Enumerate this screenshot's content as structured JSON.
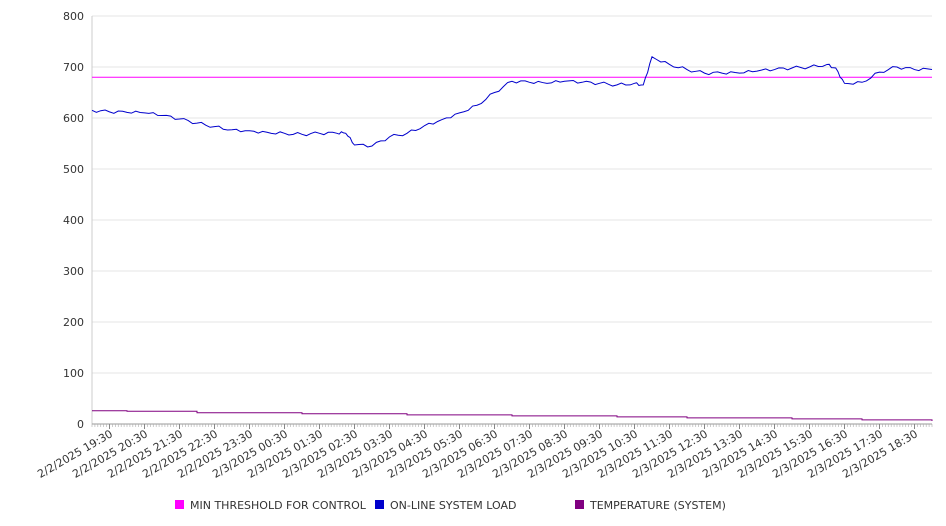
{
  "chart_data": {
    "type": "line",
    "ylim": [
      0,
      800
    ],
    "yticks": [
      "0",
      "100",
      "200",
      "300",
      "400",
      "500",
      "600",
      "700",
      "800"
    ],
    "x_tick_labels": [
      "2/2/2025 19:30",
      "2/2/2025 20:30",
      "2/2/2025 21:30",
      "2/2/2025 22:30",
      "2/2/2025 23:30",
      "2/3/2025 00:30",
      "2/3/2025 01:30",
      "2/3/2025 02:30",
      "2/3/2025 03:30",
      "2/3/2025 04:30",
      "2/3/2025 05:30",
      "2/3/2025 06:30",
      "2/3/2025 07:30",
      "2/3/2025 08:30",
      "2/3/2025 09:30",
      "2/3/2025 10:30",
      "2/3/2025 11:30",
      "2/3/2025 12:30",
      "2/3/2025 13:30",
      "2/3/2025 14:30",
      "2/3/2025 15:30",
      "2/3/2025 16:30",
      "2/3/2025 17:30",
      "2/3/2025 18:30"
    ],
    "grid": true,
    "legend_position": "bottom",
    "series": [
      {
        "name": "MIN THRESHOLD FOR CONTROL",
        "color": "#ff00ff",
        "x": [
          "2/2/2025 19:30",
          "2/3/2025 18:30"
        ],
        "values": [
          680,
          680
        ]
      },
      {
        "name": "ON-LINE SYSTEM LOAD",
        "color": "#0000cc",
        "x": [
          "2/2/2025 19:00",
          "2/2/2025 19:30",
          "2/2/2025 20:00",
          "2/2/2025 20:30",
          "2/2/2025 21:00",
          "2/2/2025 21:30",
          "2/2/2025 22:00",
          "2/2/2025 22:30",
          "2/2/2025 23:00",
          "2/2/2025 23:30",
          "2/3/2025 00:00",
          "2/3/2025 00:30",
          "2/3/2025 01:00",
          "2/3/2025 01:30",
          "2/3/2025 02:00",
          "2/3/2025 02:15",
          "2/3/2025 02:30",
          "2/3/2025 03:00",
          "2/3/2025 03:30",
          "2/3/2025 04:00",
          "2/3/2025 04:30",
          "2/3/2025 05:00",
          "2/3/2025 05:30",
          "2/3/2025 06:00",
          "2/3/2025 06:30",
          "2/3/2025 07:00",
          "2/3/2025 07:30",
          "2/3/2025 08:00",
          "2/3/2025 08:30",
          "2/3/2025 09:00",
          "2/3/2025 09:30",
          "2/3/2025 10:00",
          "2/3/2025 10:30",
          "2/3/2025 10:45",
          "2/3/2025 11:00",
          "2/3/2025 11:30",
          "2/3/2025 12:00",
          "2/3/2025 12:30",
          "2/3/2025 13:00",
          "2/3/2025 13:30",
          "2/3/2025 14:00",
          "2/3/2025 14:30",
          "2/3/2025 15:00",
          "2/3/2025 15:30",
          "2/3/2025 16:00",
          "2/3/2025 16:15",
          "2/3/2025 16:30",
          "2/3/2025 17:00",
          "2/3/2025 17:30",
          "2/3/2025 18:00",
          "2/3/2025 18:30",
          "2/3/2025 19:00"
        ],
        "values": [
          615,
          612,
          611,
          610,
          605,
          598,
          590,
          583,
          577,
          575,
          572,
          570,
          568,
          570,
          570,
          570,
          547,
          545,
          563,
          570,
          585,
          597,
          610,
          625,
          650,
          672,
          670,
          668,
          672,
          670,
          668,
          665,
          668,
          665,
          720,
          705,
          695,
          688,
          688,
          688,
          692,
          695,
          698,
          700,
          705,
          698,
          668,
          670,
          690,
          700,
          695,
          695
        ]
      },
      {
        "name": "TEMPERATURE (SYSTEM)",
        "color": "#800080",
        "x": [
          "2/2/2025 19:00",
          "2/2/2025 20:00",
          "2/2/2025 22:00",
          "2/3/2025 01:00",
          "2/3/2025 04:00",
          "2/3/2025 07:00",
          "2/3/2025 10:00",
          "2/3/2025 12:00",
          "2/3/2025 15:00",
          "2/3/2025 17:00",
          "2/3/2025 19:00"
        ],
        "values": [
          26,
          25,
          22,
          20,
          18,
          16,
          14,
          12,
          10,
          8,
          6
        ]
      }
    ]
  }
}
